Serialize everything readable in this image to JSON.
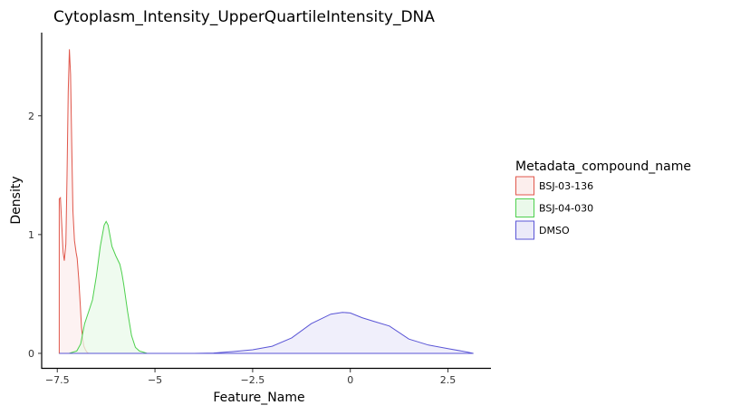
{
  "chart_data": {
    "type": "area",
    "title": "Cytoplasm_Intensity_UpperQuartileIntensity_DNA",
    "xlabel": "Feature_Name",
    "ylabel": "Density",
    "xlim": [
      -7.9,
      3.6
    ],
    "ylim": [
      -0.13,
      2.7
    ],
    "x_ticks": [
      -7.5,
      -5,
      -2.5,
      0,
      2.5
    ],
    "x_tick_labels": [
      "−7.5",
      "−5",
      "−2.5",
      "0",
      "2.5"
    ],
    "y_ticks": [
      0,
      1,
      2
    ],
    "y_tick_labels": [
      "0",
      "1",
      "2"
    ],
    "grid": false,
    "legend": {
      "title": "Metadata_compound_name",
      "position": "right"
    },
    "series": [
      {
        "name": "BSJ-03-136",
        "line_color": "#E0574B",
        "fill_color": "#FCEEED",
        "x": [
          -7.45,
          -7.42,
          -7.38,
          -7.35,
          -7.32,
          -7.28,
          -7.25,
          -7.22,
          -7.19,
          -7.16,
          -7.13,
          -7.1,
          -7.06,
          -7.02,
          -6.99,
          -6.95,
          -6.91,
          -6.88,
          -6.85,
          -6.82,
          -6.78,
          -6.74,
          -6.7
        ],
        "y": [
          1.3,
          1.31,
          1.05,
          0.85,
          0.78,
          0.92,
          1.5,
          2.2,
          2.56,
          2.35,
          1.75,
          1.2,
          0.95,
          0.85,
          0.8,
          0.62,
          0.4,
          0.22,
          0.12,
          0.06,
          0.03,
          0.01,
          0.0
        ]
      },
      {
        "name": "BSJ-04-030",
        "line_color": "#4DD04D",
        "fill_color": "#EAF9EA",
        "x": [
          -7.45,
          -7.2,
          -7.0,
          -6.9,
          -6.8,
          -6.7,
          -6.6,
          -6.5,
          -6.4,
          -6.3,
          -6.25,
          -6.2,
          -6.1,
          -6.0,
          -5.9,
          -5.85,
          -5.8,
          -5.7,
          -5.6,
          -5.5,
          -5.4,
          -5.3,
          -5.2,
          3.15
        ],
        "y": [
          0.0,
          0.0,
          0.02,
          0.08,
          0.25,
          0.35,
          0.45,
          0.65,
          0.9,
          1.08,
          1.11,
          1.08,
          0.9,
          0.82,
          0.75,
          0.68,
          0.58,
          0.35,
          0.15,
          0.05,
          0.02,
          0.01,
          0.0,
          0.0
        ]
      },
      {
        "name": "DMSO",
        "line_color": "#5A55D6",
        "fill_color": "#EBEAF9",
        "x": [
          -7.45,
          -5.0,
          -4.0,
          -3.5,
          -3.0,
          -2.5,
          -2.0,
          -1.5,
          -1.0,
          -0.5,
          -0.2,
          0.0,
          0.3,
          0.6,
          1.0,
          1.5,
          2.0,
          2.5,
          3.0,
          3.15
        ],
        "y": [
          0.0,
          0.0,
          0.0,
          0.003,
          0.015,
          0.03,
          0.06,
          0.13,
          0.25,
          0.33,
          0.345,
          0.34,
          0.3,
          0.27,
          0.23,
          0.12,
          0.07,
          0.04,
          0.01,
          0.0
        ]
      }
    ]
  }
}
